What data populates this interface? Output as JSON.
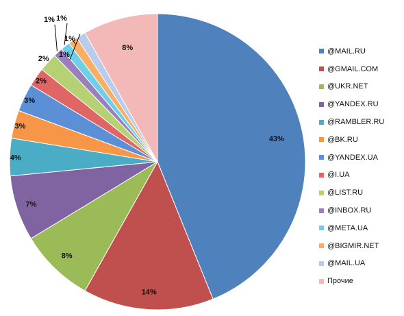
{
  "chart_data": {
    "type": "pie",
    "title": "",
    "legend_position": "right",
    "slices": [
      {
        "label": "@MAIL.RU",
        "value": 43,
        "value_label": "43%",
        "color": "#4F81BD"
      },
      {
        "label": "@GMAIL.COM",
        "value": 14,
        "value_label": "14%",
        "color": "#C0504D"
      },
      {
        "label": "@UKR.NET",
        "value": 8,
        "value_label": "8%",
        "color": "#9BBB59"
      },
      {
        "label": "@YANDEX.RU",
        "value": 7,
        "value_label": "7%",
        "color": "#8064A2"
      },
      {
        "label": "@RAMBLER.RU",
        "value": 4,
        "value_label": "4%",
        "color": "#4BACC6"
      },
      {
        "label": "@BK.RU",
        "value": 3,
        "value_label": "3%",
        "color": "#F79646"
      },
      {
        "label": "@YANDEX.UA",
        "value": 3,
        "value_label": "3%",
        "color": "#5B8FD6"
      },
      {
        "label": "@I.UA",
        "value": 2,
        "value_label": "2%",
        "color": "#E06666"
      },
      {
        "label": "@LIST.RU",
        "value": 2,
        "value_label": "2%",
        "color": "#B5D173"
      },
      {
        "label": "@INBOX.RU",
        "value": 1,
        "value_label": "1%",
        "color": "#9A7FBE"
      },
      {
        "label": "@META.UA",
        "value": 1,
        "value_label": "1%",
        "color": "#6ED0E8"
      },
      {
        "label": "@BIGMIR.NET",
        "value": 1,
        "value_label": "1%",
        "color": "#F9AE63"
      },
      {
        "label": "@MAIL.UA",
        "value": 1,
        "value_label": "1%",
        "color": "#B8CCEB"
      },
      {
        "label": "Прочие",
        "value": 8,
        "value_label": "8%",
        "color": "#F2B9B8"
      }
    ]
  }
}
